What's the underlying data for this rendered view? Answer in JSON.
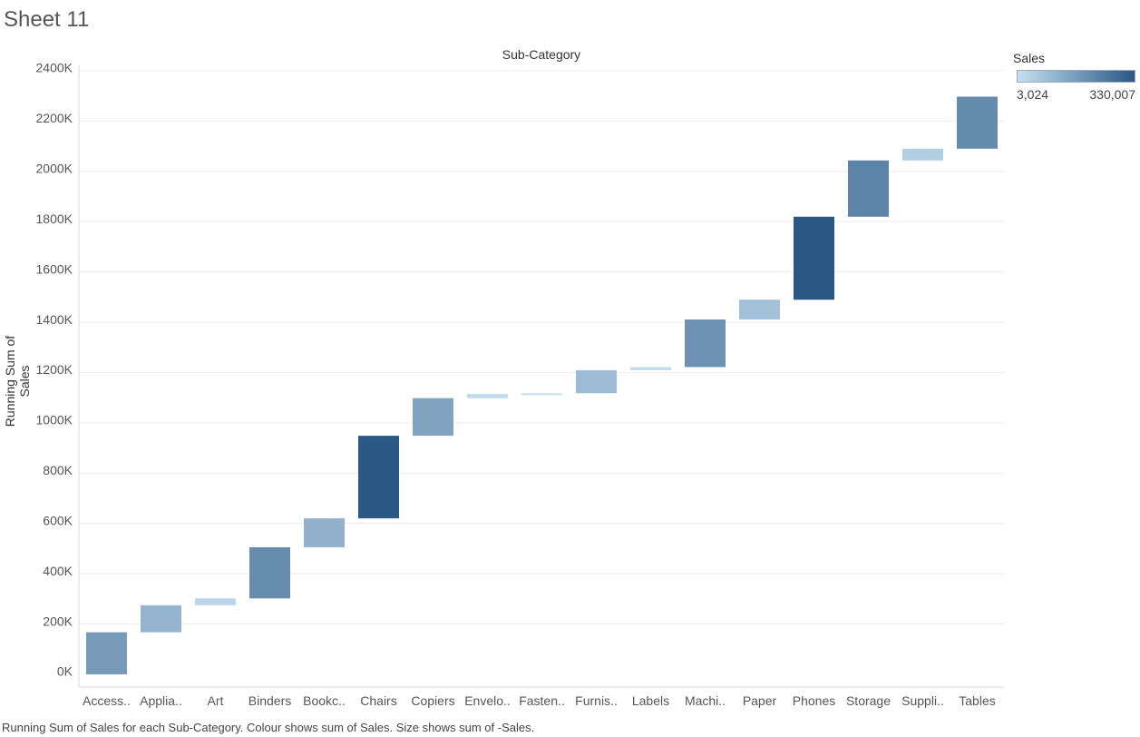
{
  "sheet_title": "Sheet 11",
  "footer": "Running Sum of Sales for each Sub-Category.  Colour shows sum of Sales.  Size shows sum of -Sales.",
  "legend": {
    "title": "Sales",
    "min_label": "3,024",
    "max_label": "330,007",
    "color_low": "#c6e0f2",
    "color_high": "#2a5783"
  },
  "chart_data": {
    "type": "bar",
    "subtype": "waterfall",
    "title": "Sub-Category",
    "xlabel": "",
    "ylabel": "Running Sum of Sales",
    "ylim": [
      -40000,
      2400000
    ],
    "y_ticks": [
      0,
      200000,
      400000,
      600000,
      800000,
      1000000,
      1200000,
      1400000,
      1600000,
      1800000,
      2000000,
      2200000,
      2400000
    ],
    "y_tick_labels": [
      "0K",
      "200K",
      "400K",
      "600K",
      "800K",
      "1000K",
      "1200K",
      "1400K",
      "1600K",
      "1800K",
      "2000K",
      "2200K",
      "2400K"
    ],
    "grid": true,
    "categories": [
      "Access..",
      "Applia..",
      "Art",
      "Binders",
      "Bookc..",
      "Chairs",
      "Copiers",
      "Envelo..",
      "Fasten..",
      "Furnis..",
      "Labels",
      "Machi..",
      "Paper",
      "Phones",
      "Storage",
      "Suppli..",
      "Tables"
    ],
    "values": [
      167380,
      107532,
      27119,
      203413,
      114880,
      328449,
      149528,
      16476,
      3024,
      91705,
      12486,
      189239,
      78479,
      330007,
      223844,
      46674,
      206966
    ],
    "running_sum": [
      167380,
      274912,
      302031,
      505444,
      620324,
      948773,
      1098301,
      1114777,
      1117801,
      1209506,
      1221992,
      1411231,
      1489710,
      1819717,
      2043561,
      2090235,
      2297201
    ]
  }
}
